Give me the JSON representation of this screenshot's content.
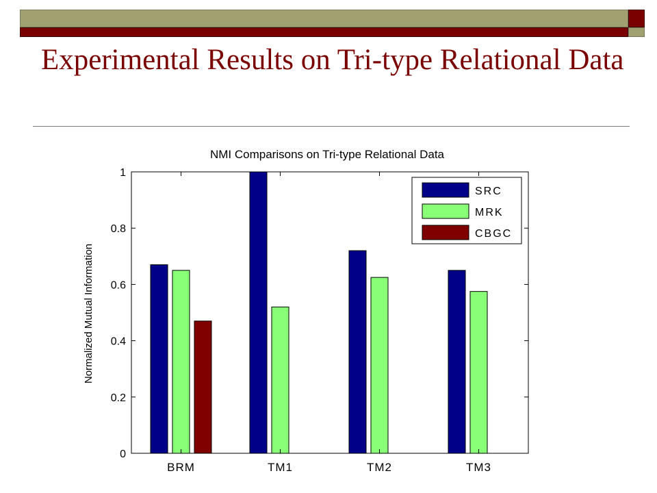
{
  "slide": {
    "title": "Experimental Results on Tri-type Relational Data"
  },
  "colors": {
    "olive": "#a0a070",
    "maroon": "#7a0000",
    "src": "#000088",
    "mrk": "#88ff77",
    "cbgc": "#800000"
  },
  "chart_data": {
    "type": "bar",
    "title": "NMI Comparisons on Tri-type Relational Data",
    "xlabel": "",
    "ylabel": "Normalized Mutual Information",
    "categories": [
      "BRM",
      "TM1",
      "TM2",
      "TM3"
    ],
    "ylim": [
      0,
      1
    ],
    "yticks": [
      0,
      0.2,
      0.4,
      0.6,
      0.8,
      1
    ],
    "ytick_labels": [
      "0",
      "0.2",
      "0.4",
      "0.6",
      "0.8",
      "1"
    ],
    "grid": false,
    "legend_position": "top-right",
    "series": [
      {
        "name": "SRC",
        "color": "#000088",
        "values": [
          0.67,
          1.0,
          0.72,
          0.65
        ]
      },
      {
        "name": "MRK",
        "color": "#88ff77",
        "values": [
          0.65,
          0.52,
          0.625,
          0.575
        ]
      },
      {
        "name": "CBGC",
        "color": "#800000",
        "values": [
          0.47,
          null,
          null,
          null
        ]
      }
    ]
  }
}
